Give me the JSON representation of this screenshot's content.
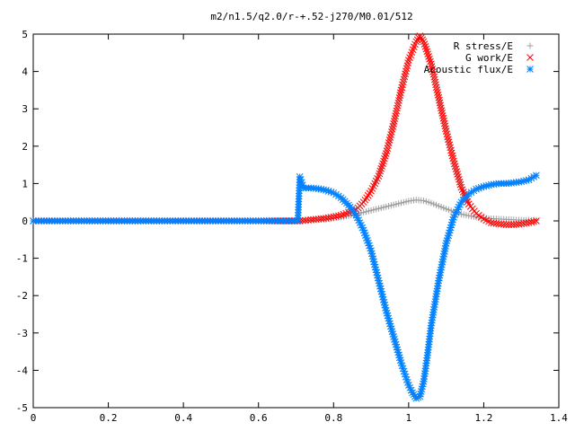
{
  "chart_data": {
    "type": "scatter",
    "title": "m2/n1.5/q2.0/r-+.52-j270/M0.01/512",
    "xlabel": "",
    "ylabel": "",
    "xlim": [
      0,
      1.4
    ],
    "ylim": [
      -5,
      5
    ],
    "x_ticks": [
      "0",
      "0.2",
      "0.4",
      "0.6",
      "0.8",
      "1",
      "1.2",
      "1.4"
    ],
    "y_ticks": [
      "5",
      "4",
      "3",
      "2",
      "1",
      "0",
      "-1",
      "-2",
      "-3",
      "-4",
      "-5"
    ],
    "x_tick_values": [
      0,
      0.2,
      0.4,
      0.6,
      0.8,
      1.0,
      1.2,
      1.4
    ],
    "y_tick_values": [
      5,
      4,
      3,
      2,
      1,
      0,
      -1,
      -2,
      -3,
      -4,
      -5
    ],
    "grid": false,
    "legend_position": "top-right",
    "series": [
      {
        "name": "R stress/E",
        "marker": "+",
        "color": "#a0a0a0",
        "x": [
          0.0,
          0.1,
          0.2,
          0.3,
          0.4,
          0.5,
          0.6,
          0.71,
          0.74,
          0.78,
          0.82,
          0.86,
          0.9,
          0.94,
          0.98,
          1.0,
          1.02,
          1.04,
          1.06,
          1.08,
          1.1,
          1.14,
          1.18,
          1.22,
          1.26,
          1.3,
          1.34
        ],
        "y": [
          0.0,
          0.0,
          0.0,
          0.0,
          0.0,
          0.0,
          0.0,
          0.0,
          0.02,
          0.05,
          0.1,
          0.18,
          0.28,
          0.38,
          0.48,
          0.53,
          0.56,
          0.54,
          0.48,
          0.4,
          0.32,
          0.18,
          0.1,
          0.06,
          0.04,
          0.02,
          0.02
        ]
      },
      {
        "name": "G work/E",
        "marker": "x",
        "color": "#ff0000",
        "x": [
          0.0,
          0.1,
          0.2,
          0.3,
          0.4,
          0.5,
          0.6,
          0.71,
          0.74,
          0.78,
          0.82,
          0.86,
          0.88,
          0.9,
          0.92,
          0.94,
          0.96,
          0.98,
          1.0,
          1.02,
          1.03,
          1.04,
          1.06,
          1.08,
          1.1,
          1.12,
          1.14,
          1.16,
          1.18,
          1.2,
          1.22,
          1.24,
          1.26,
          1.28,
          1.3,
          1.32,
          1.34
        ],
        "y": [
          0.0,
          0.0,
          0.0,
          0.0,
          0.0,
          0.0,
          0.0,
          0.0,
          0.03,
          0.07,
          0.15,
          0.3,
          0.5,
          0.8,
          1.2,
          1.8,
          2.6,
          3.5,
          4.3,
          4.8,
          4.95,
          4.8,
          4.2,
          3.3,
          2.4,
          1.6,
          0.9,
          0.45,
          0.2,
          0.05,
          -0.05,
          -0.08,
          -0.1,
          -0.1,
          -0.08,
          -0.05,
          0.0
        ]
      },
      {
        "name": "Acoustic flux/E",
        "marker": "*",
        "color": "#0080ff",
        "x": [
          0.0,
          0.1,
          0.2,
          0.3,
          0.4,
          0.5,
          0.6,
          0.705,
          0.71,
          0.72,
          0.74,
          0.76,
          0.78,
          0.8,
          0.82,
          0.84,
          0.86,
          0.88,
          0.9,
          0.92,
          0.94,
          0.96,
          0.98,
          0.99,
          1.0,
          1.01,
          1.02,
          1.03,
          1.04,
          1.05,
          1.06,
          1.08,
          1.1,
          1.12,
          1.14,
          1.16,
          1.18,
          1.2,
          1.22,
          1.24,
          1.26,
          1.28,
          1.3,
          1.32,
          1.34
        ],
        "y": [
          0.0,
          0.0,
          0.0,
          0.0,
          0.0,
          0.0,
          0.0,
          0.0,
          1.18,
          0.88,
          0.88,
          0.86,
          0.82,
          0.75,
          0.62,
          0.42,
          0.15,
          -0.25,
          -0.8,
          -1.6,
          -2.4,
          -3.1,
          -3.8,
          -4.1,
          -4.4,
          -4.6,
          -4.75,
          -4.7,
          -4.3,
          -3.6,
          -2.8,
          -1.6,
          -0.6,
          0.1,
          0.5,
          0.72,
          0.85,
          0.92,
          0.97,
          1.0,
          1.0,
          1.02,
          1.05,
          1.1,
          1.22
        ]
      }
    ]
  }
}
